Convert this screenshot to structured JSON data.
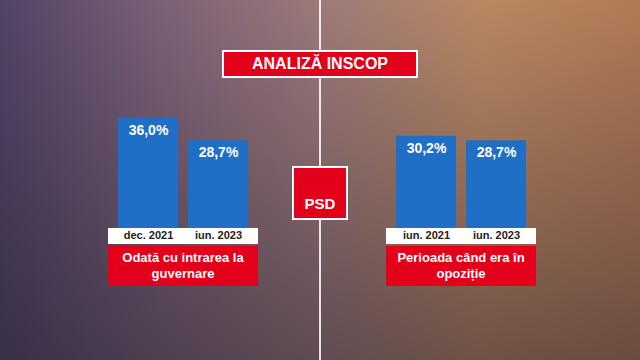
{
  "header": {
    "title": "ANALIZĂ INSCOP",
    "logo": "PSD"
  },
  "chart_data": [
    {
      "type": "bar",
      "title": "Odată cu intrarea la guvernare",
      "categories": [
        "dec. 2021",
        "iun. 2023"
      ],
      "values": [
        36.0,
        28.7
      ],
      "value_labels": [
        "36,0%",
        "28,7%"
      ],
      "color": "#1f6fc6",
      "ylim": [
        0,
        36
      ],
      "yticks": [],
      "tick_labels": "x",
      "data_labels": true
    },
    {
      "type": "bar",
      "title": "Perioada când era în opoziție",
      "categories": [
        "iun. 2021",
        "iun. 2023"
      ],
      "values": [
        30.2,
        28.7
      ],
      "value_labels": [
        "30,2%",
        "28,7%"
      ],
      "color": "#1f6fc6",
      "ylim": [
        0,
        36
      ],
      "yticks": [],
      "tick_labels": "x",
      "data_labels": true
    }
  ]
}
